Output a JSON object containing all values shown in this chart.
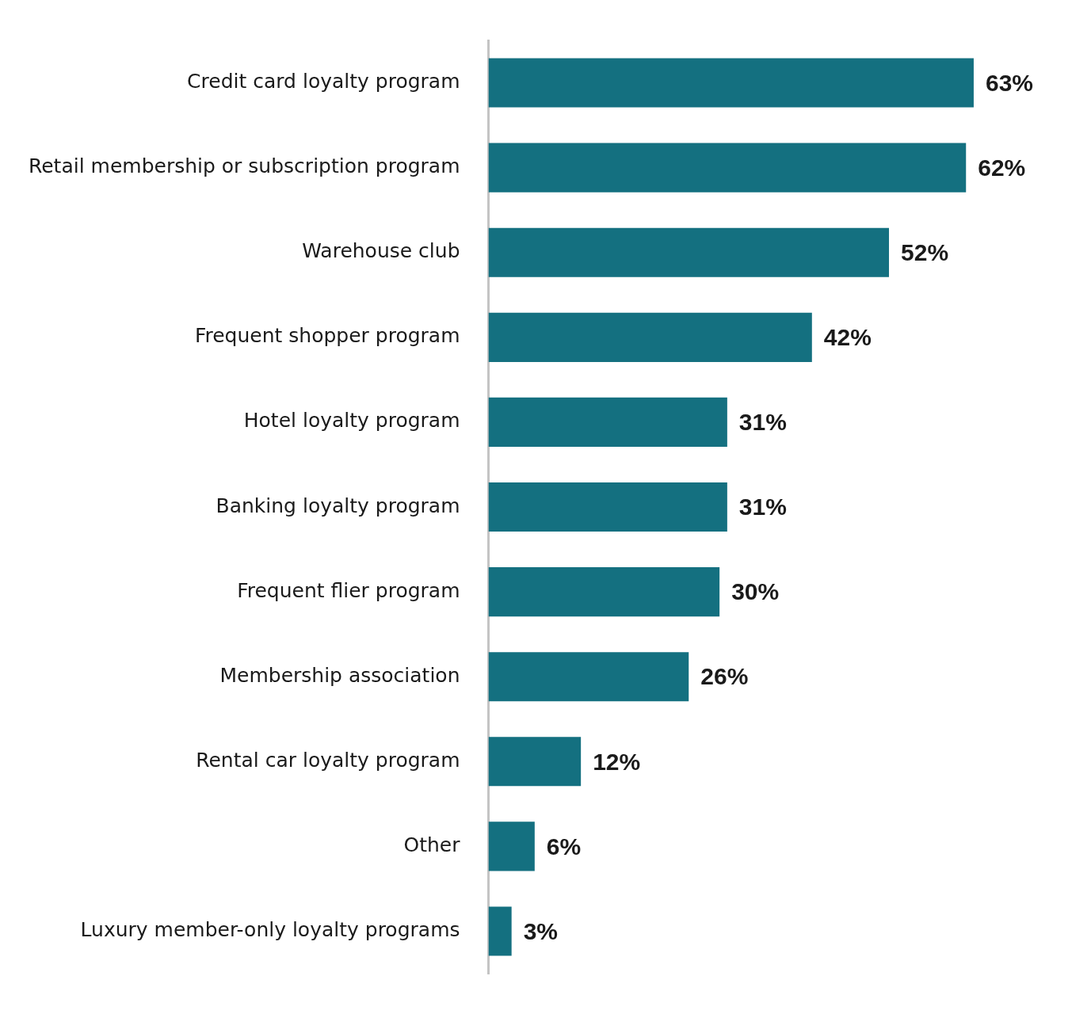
{
  "chart_data": {
    "type": "bar",
    "orientation": "horizontal",
    "categories": [
      "Credit card loyalty program",
      "Retail membership or subscription program",
      "Warehouse club",
      "Frequent shopper program",
      "Hotel loyalty program",
      "Banking loyalty program",
      "Frequent flier program",
      "Membership association",
      "Rental car loyalty program",
      "Other",
      "Luxury member-only loyalty programs"
    ],
    "values": [
      63,
      62,
      52,
      42,
      31,
      31,
      30,
      26,
      12,
      6,
      3
    ],
    "value_labels": [
      "63%",
      "62%",
      "52%",
      "42%",
      "31%",
      "31%",
      "30%",
      "26%",
      "12%",
      "6%",
      "3%"
    ],
    "color": "#147080",
    "tick_labels": "y",
    "grid": false,
    "legend": false
  }
}
